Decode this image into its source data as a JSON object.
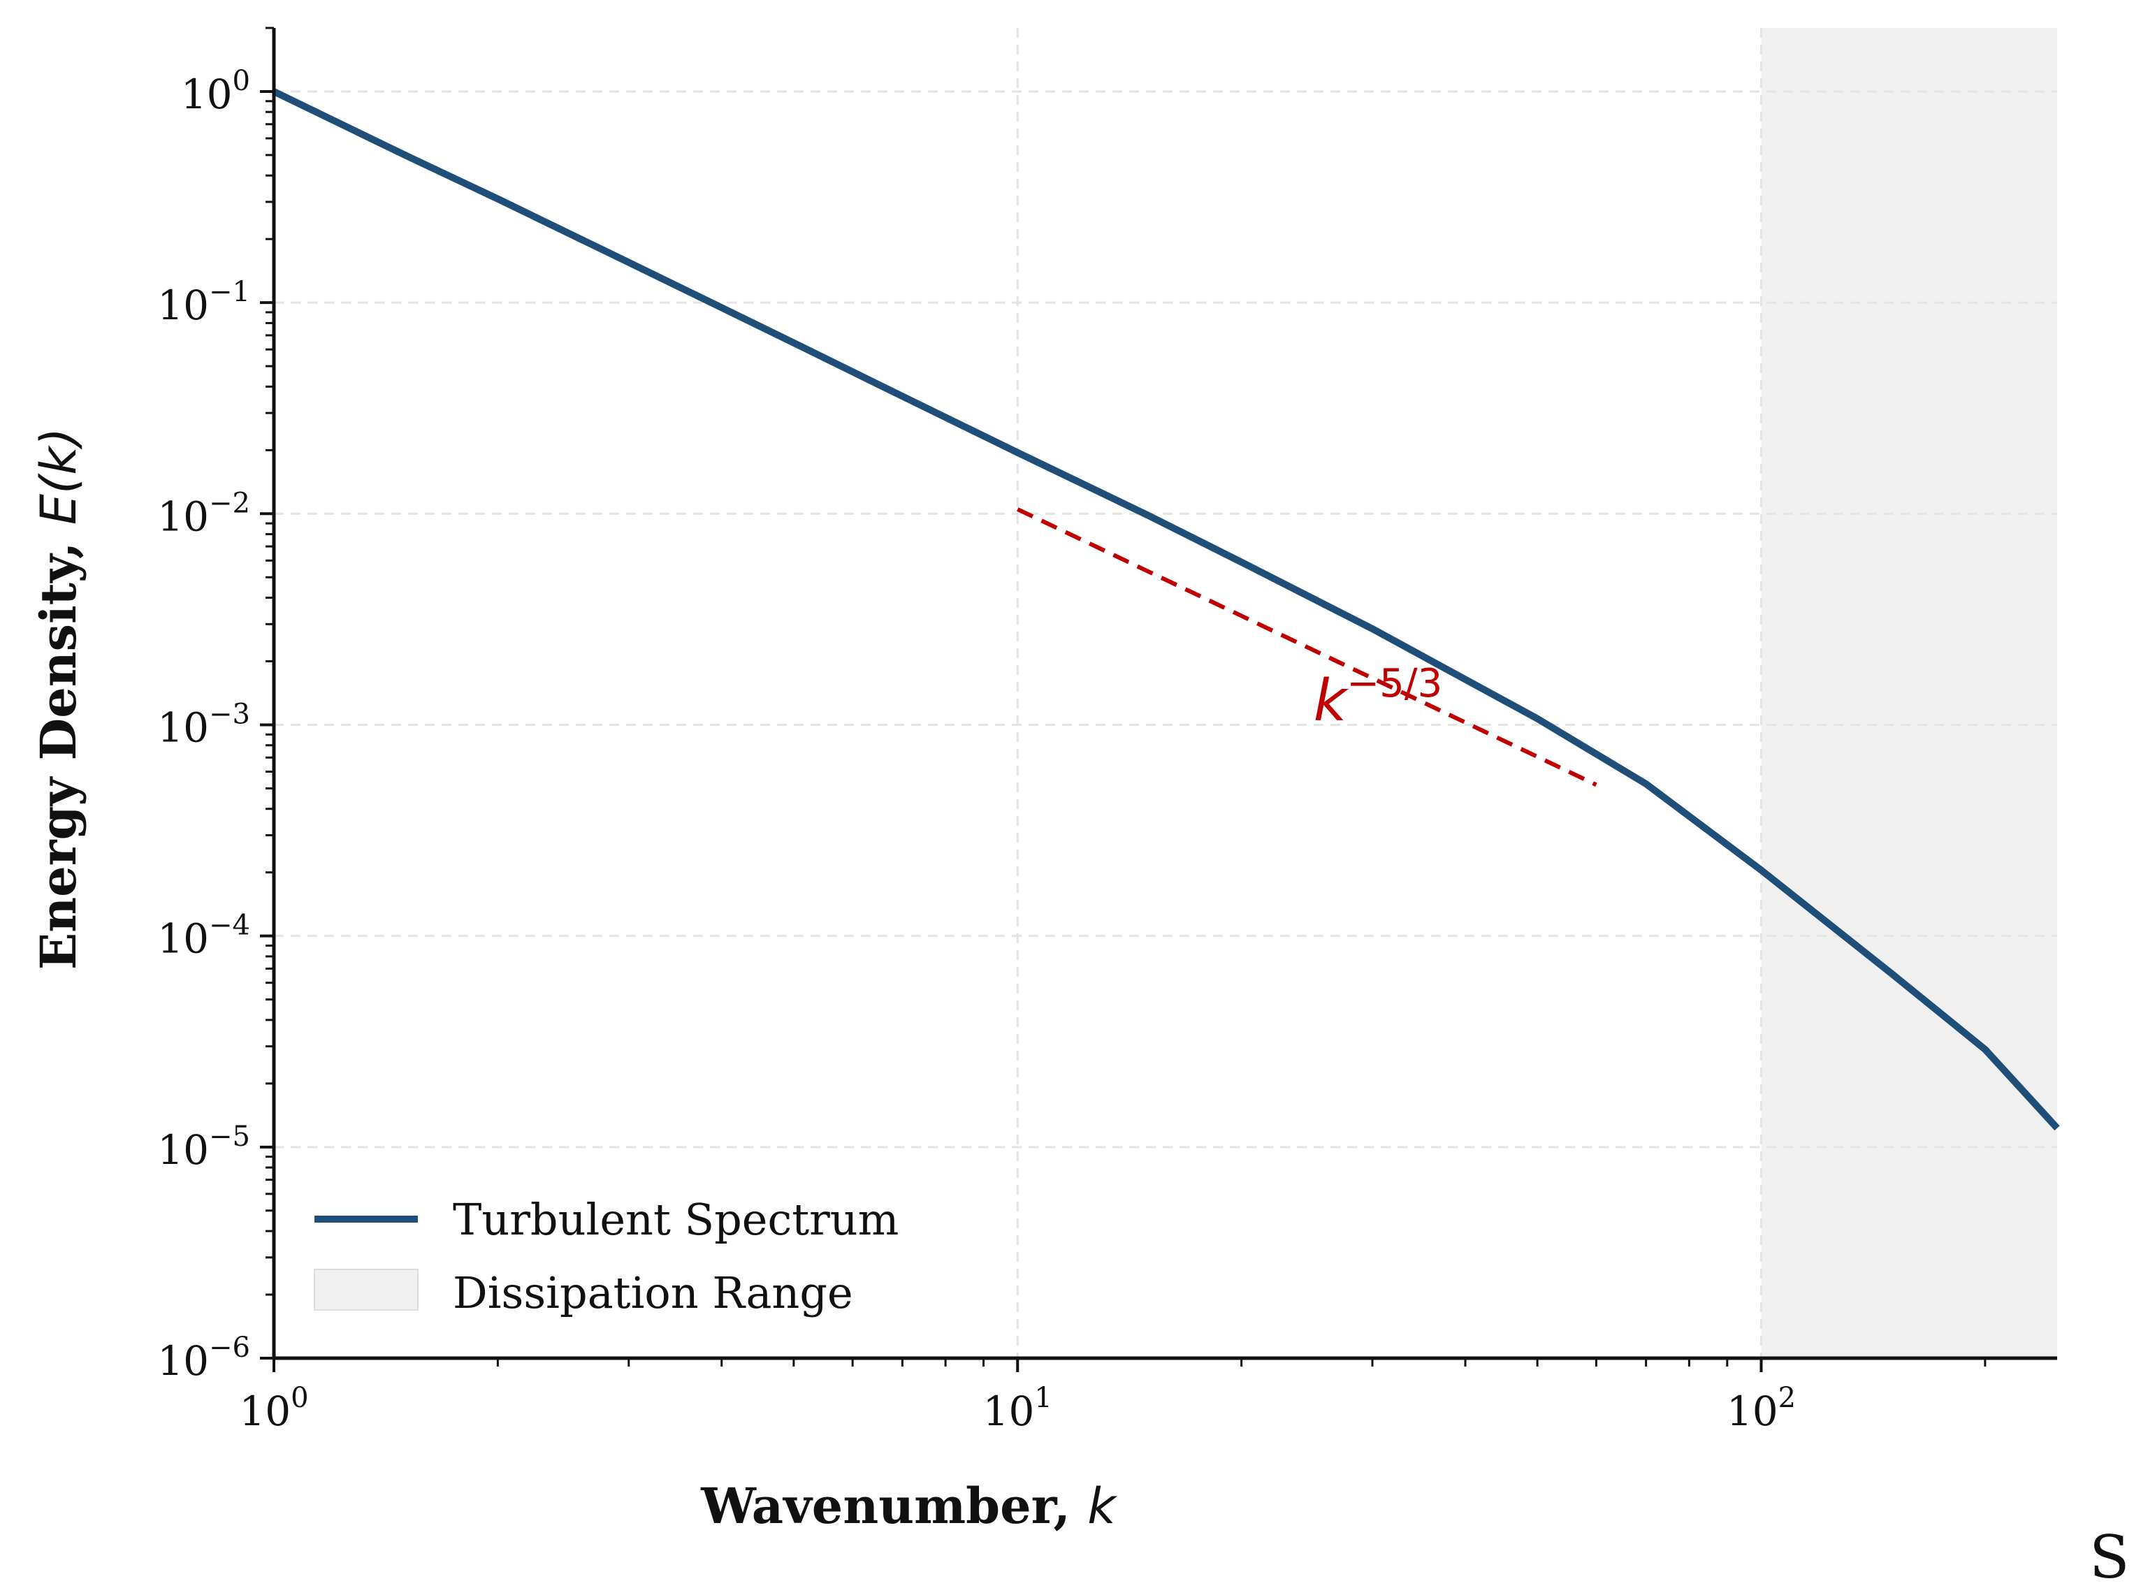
{
  "chart_data": {
    "type": "line",
    "x": [
      1,
      1.5,
      2,
      3,
      5,
      7,
      10,
      15,
      20,
      30,
      50,
      70,
      100,
      150,
      200,
      250
    ],
    "series": [
      {
        "name": "Turbulent Spectrum",
        "color": "#1f4e79",
        "values": [
          1.0,
          0.5,
          0.31,
          0.155,
          0.0645,
          0.036,
          0.0195,
          0.0098,
          0.0059,
          0.00285,
          0.00107,
          0.000525,
          0.000205,
          6.6e-05,
          2.9e-05,
          1.23e-05
        ]
      }
    ],
    "reference_line": {
      "label_base": "k",
      "label_exponent": "−5/3",
      "color": "#c00000",
      "style": "dashed",
      "x": [
        10,
        60
      ],
      "y": [
        0.0105,
        0.00052
      ]
    },
    "shaded_region": {
      "name": "Dissipation Range",
      "color": "#f0f0f0",
      "x_range": [
        100,
        250
      ]
    },
    "xscale": "log",
    "yscale": "log",
    "xlim": [
      1,
      250
    ],
    "ylim": [
      1e-06,
      2
    ],
    "x_ticks": [
      {
        "value": 1,
        "base": "10",
        "exp": "0"
      },
      {
        "value": 10,
        "base": "10",
        "exp": "1"
      },
      {
        "value": 100,
        "base": "10",
        "exp": "2"
      }
    ],
    "y_ticks": [
      {
        "value": 1,
        "base": "10",
        "exp": "0"
      },
      {
        "value": 0.1,
        "base": "10",
        "exp": "−1"
      },
      {
        "value": 0.01,
        "base": "10",
        "exp": "−2"
      },
      {
        "value": 0.001,
        "base": "10",
        "exp": "−3"
      },
      {
        "value": 0.0001,
        "base": "10",
        "exp": "−4"
      },
      {
        "value": 1e-05,
        "base": "10",
        "exp": "−5"
      },
      {
        "value": 1e-06,
        "base": "10",
        "exp": "−6"
      }
    ],
    "xlabel": {
      "text": "Wavenumber, ",
      "var": "k"
    },
    "ylabel": {
      "text": "Energy Density, ",
      "var": "E(k)"
    },
    "grid": true,
    "legend_position": "bottom-left",
    "legend": [
      {
        "label": "Turbulent Spectrum",
        "kind": "line"
      },
      {
        "label": "Dissipation Range",
        "kind": "patch"
      }
    ]
  },
  "corner_text": "S"
}
